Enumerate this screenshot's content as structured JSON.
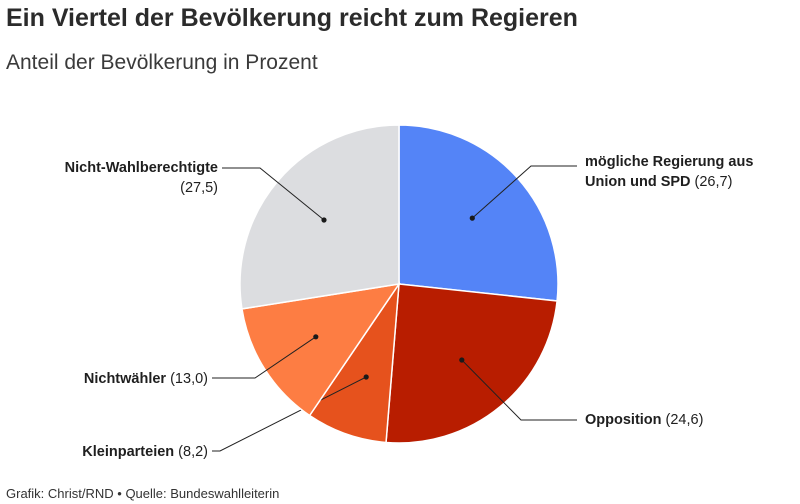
{
  "title": "Ein Viertel der Bevölkerung reicht zum Regieren",
  "subtitle": "Anteil der Bevölkerung in Prozent",
  "footer": {
    "grafik": "Grafik: Christ/RND",
    "separator": "•",
    "quelle": "Quelle: Bundeswahlleiterin"
  },
  "chart_data": {
    "type": "pie",
    "start": "12 o'clock",
    "direction": "clockwise",
    "slices": [
      {
        "label": [
          "mögliche Regierung aus",
          "Union und SPD"
        ],
        "value": 26.7,
        "value_text": "(26,7)",
        "color": "#5484f7"
      },
      {
        "label": [
          "Opposition"
        ],
        "value": 24.6,
        "value_text": "(24,6)",
        "color": "#b81d00"
      },
      {
        "label": [
          "Kleinparteien"
        ],
        "value": 8.2,
        "value_text": "(8,2)",
        "color": "#e6521d"
      },
      {
        "label": [
          "Nichtwähler"
        ],
        "value": 13.0,
        "value_text": "(13,0)",
        "color": "#fd7d43"
      },
      {
        "label": [
          "Nicht-Wahlberechtigte"
        ],
        "value": 27.5,
        "value_text": "(27,5)",
        "color": "#dcdde0"
      }
    ]
  }
}
